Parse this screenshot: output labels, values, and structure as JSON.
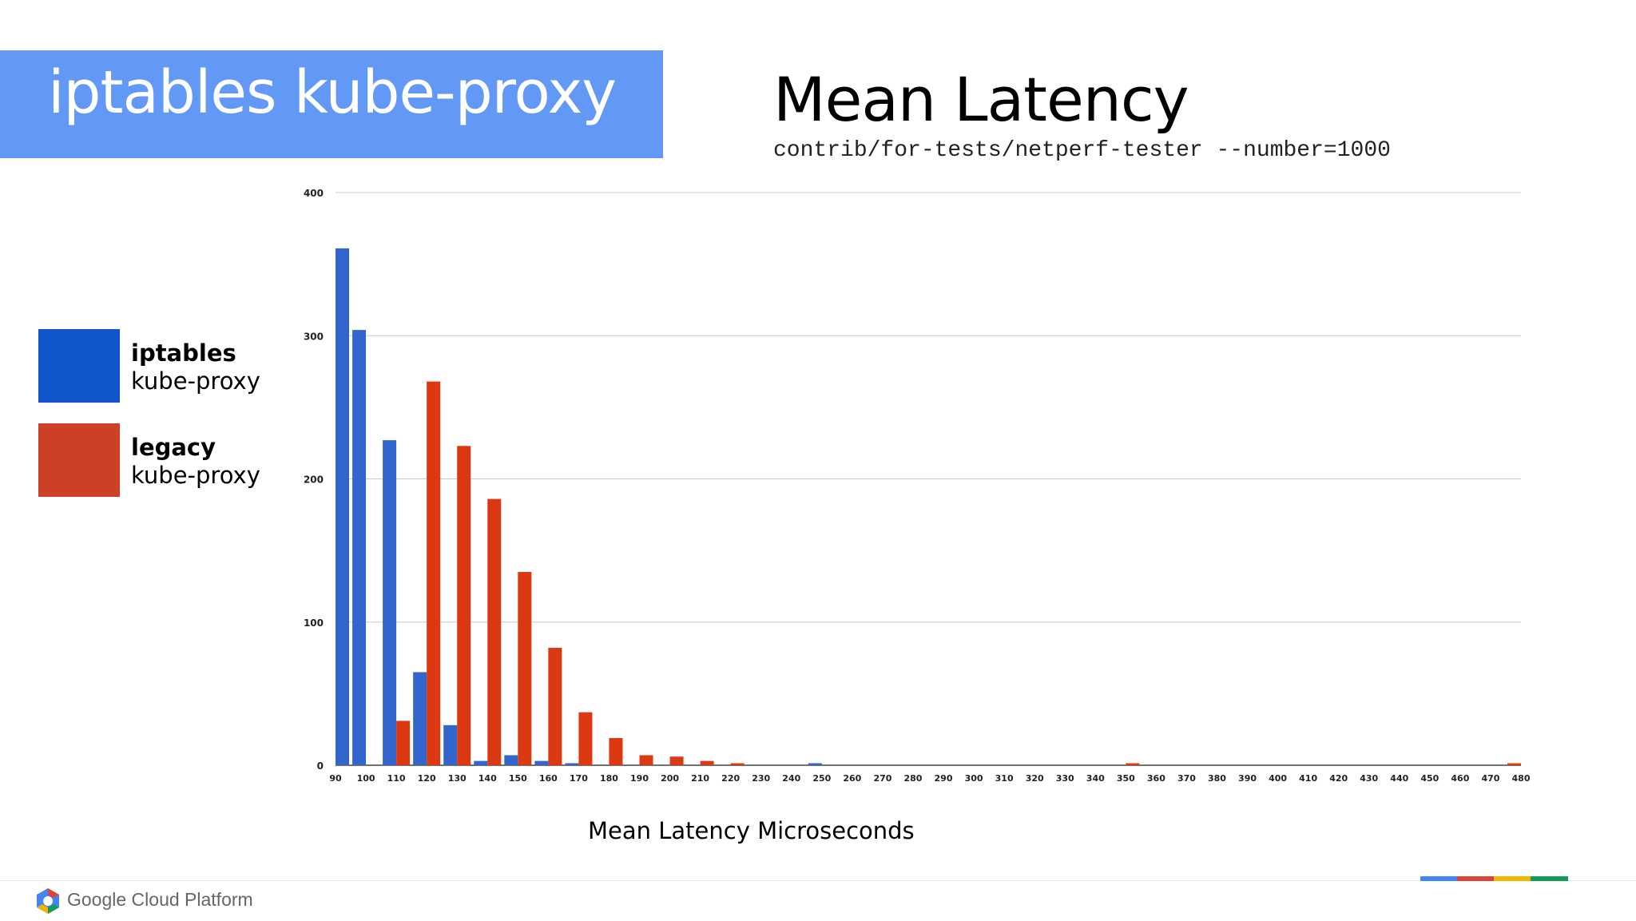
{
  "slide": {
    "banner_title": "iptables kube-proxy",
    "heading": "Mean Latency",
    "subheading": "contrib/for-tests/netperf-tester --number=1000",
    "footer_brand": "Google Cloud Platform"
  },
  "legend": [
    {
      "bold": "iptables",
      "rest": "kube-proxy",
      "color": "#1155cc"
    },
    {
      "bold": "legacy",
      "rest": "kube-proxy",
      "color": "#cc4125"
    }
  ],
  "colors": {
    "banner": "#6299f6",
    "brand_blue": "#4285f4",
    "brand_red": "#db4437",
    "brand_yellow": "#f4b400",
    "brand_green": "#0f9d58"
  },
  "chart_data": {
    "type": "bar",
    "xlabel": "Mean Latency Microseconds",
    "ylabel": "",
    "ylim": [
      0,
      400
    ],
    "yticks": [
      0,
      100,
      200,
      300,
      400
    ],
    "grid": true,
    "legend_placement": "left",
    "categories": [
      90,
      100,
      110,
      120,
      130,
      140,
      150,
      160,
      170,
      180,
      190,
      200,
      210,
      220,
      230,
      240,
      250,
      260,
      270,
      280,
      290,
      300,
      310,
      320,
      330,
      340,
      350,
      360,
      370,
      380,
      390,
      400,
      410,
      420,
      430,
      440,
      450,
      460,
      470,
      480
    ],
    "series": [
      {
        "name": "iptables kube-proxy",
        "color": "#3366cc",
        "values": [
          361,
          304,
          227,
          65,
          28,
          3,
          7,
          3,
          1,
          0,
          0,
          0,
          0,
          0,
          0,
          0,
          1,
          0,
          0,
          0,
          0,
          0,
          0,
          0,
          0,
          0,
          0,
          0,
          0,
          0,
          0,
          0,
          0,
          0,
          0,
          0,
          0,
          0,
          0,
          0
        ]
      },
      {
        "name": "legacy kube-proxy",
        "color": "#dc3912",
        "values": [
          0,
          0,
          31,
          268,
          223,
          186,
          135,
          82,
          37,
          19,
          7,
          6,
          3,
          1,
          0,
          0,
          0,
          0,
          0,
          0,
          0,
          0,
          0,
          0,
          0,
          0,
          1,
          0,
          0,
          0,
          0,
          0,
          0,
          0,
          0,
          0,
          0,
          0,
          0,
          1
        ]
      }
    ]
  }
}
